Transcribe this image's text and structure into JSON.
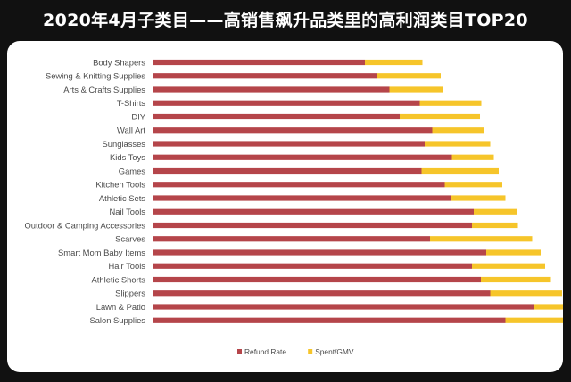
{
  "title": "2020年4月子类目——高销售飙升品类里的高利润类目TOP20",
  "colors": {
    "background": "#111111",
    "card": "#ffffff",
    "refund": "#b5454a",
    "spent": "#f6c52a"
  },
  "chart_data": {
    "type": "bar",
    "orientation": "horizontal",
    "stacked": true,
    "categories": [
      "Body Shapers",
      "Sewing & Knitting Supplies",
      "Arts & Crafts Supplies",
      "T-Shirts",
      "DIY",
      "Wall Art",
      "Sunglasses",
      "Kids Toys",
      "Games",
      "Kitchen Tools",
      "Athletic Sets",
      "Nail Tools",
      "Outdoor & Camping Accessories",
      "Scarves",
      "Smart Mom Baby Items",
      "Hair Tools",
      "Athletic Shorts",
      "Slippers",
      "Lawn & Patio",
      "Salon Supplies"
    ],
    "series": [
      {
        "name": "Refund Rate",
        "color": "#b5454a",
        "values": [
          0.476,
          0.503,
          0.531,
          0.599,
          0.554,
          0.627,
          0.61,
          0.671,
          0.603,
          0.655,
          0.669,
          0.72,
          0.716,
          0.622,
          0.748,
          0.716,
          0.736,
          0.757,
          0.855,
          0.791
        ]
      },
      {
        "name": "Spent/GMV",
        "color": "#f6c52a",
        "values": [
          0.129,
          0.143,
          0.121,
          0.138,
          0.18,
          0.115,
          0.147,
          0.094,
          0.173,
          0.129,
          0.122,
          0.096,
          0.103,
          0.229,
          0.122,
          0.164,
          0.157,
          0.161,
          0.072,
          0.161
        ]
      }
    ],
    "legend_position": "bottom",
    "grid": false
  }
}
